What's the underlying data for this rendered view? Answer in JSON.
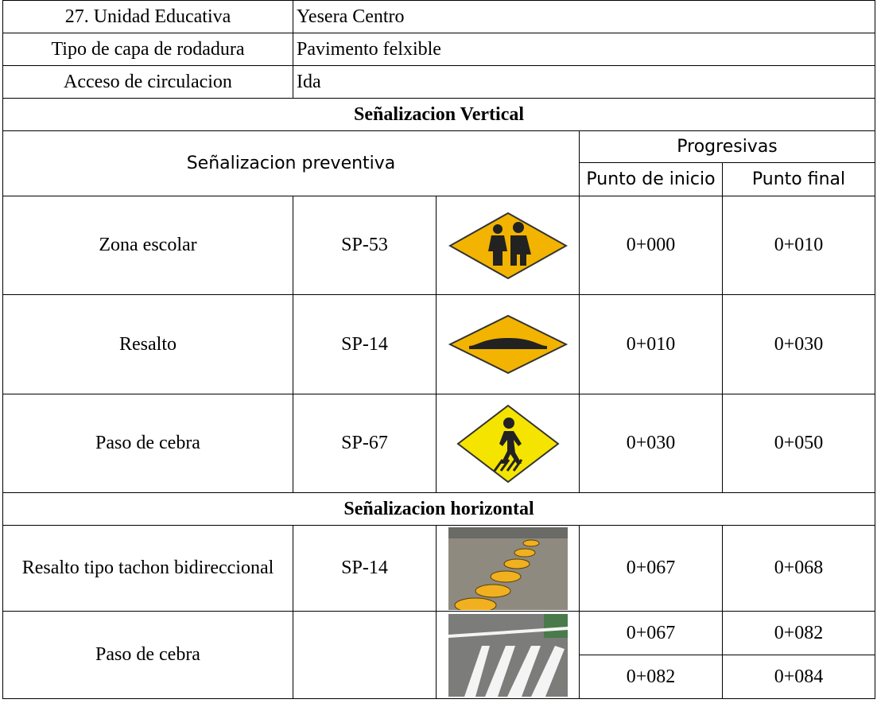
{
  "info": [
    {
      "label": "27. Unidad Educativa",
      "value": "Yesera Centro"
    },
    {
      "label": "Tipo de capa de rodadura",
      "value": "Pavimento felxible"
    },
    {
      "label": "Acceso de circulacion",
      "value": "Ida"
    }
  ],
  "vertical": {
    "title": "Señalizacion Vertical",
    "group_header": "Señalizacion preventiva",
    "progresivas": "Progresivas",
    "start_header": "Punto de inicio",
    "end_header": "Punto final",
    "rows": [
      {
        "name": "Zona escolar",
        "code": "SP-53",
        "start": "0+000",
        "end": "0+010"
      },
      {
        "name": "Resalto",
        "code": "SP-14",
        "start": "0+010",
        "end": "0+030"
      },
      {
        "name": "Paso de cebra",
        "code": "SP-67",
        "start": "0+030",
        "end": "0+050"
      }
    ]
  },
  "horizontal": {
    "title": "Señalizacion horizontal",
    "rows": [
      {
        "name": "Resalto tipo tachon bidireccional",
        "code": "SP-14",
        "ranges": [
          {
            "start": "0+067",
            "end": "0+068"
          }
        ]
      },
      {
        "name": "Paso de cebra",
        "ranges": [
          {
            "start": "0+067",
            "end": "0+082"
          },
          {
            "start": "0+082",
            "end": "0+084"
          }
        ]
      }
    ]
  }
}
